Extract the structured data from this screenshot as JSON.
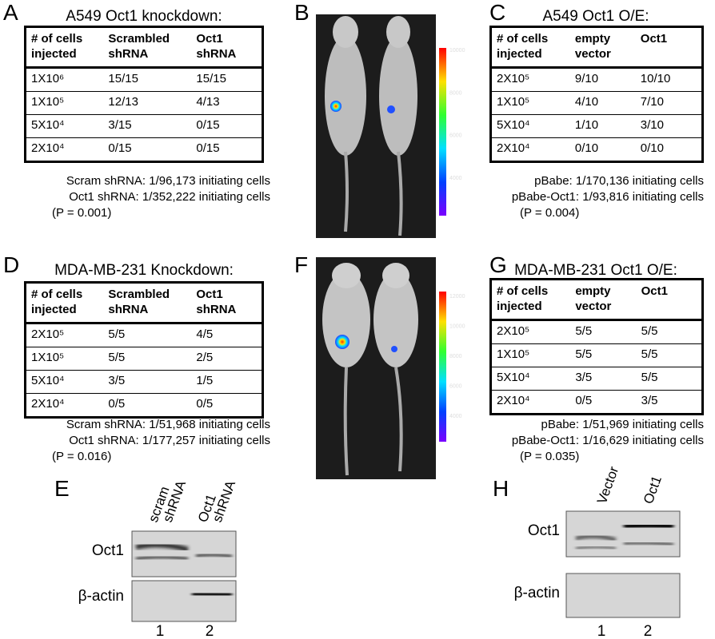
{
  "panels": [
    {
      "letter": "A",
      "title": "A549 Oct1 knockdown:",
      "table": {
        "header": [
          "# of cells injected",
          "Scrambled shRNA",
          "Oct1 shRNA"
        ],
        "rows": [
          [
            "1X10⁶",
            "15/15",
            "15/15"
          ],
          [
            "1X10⁵",
            "12/13",
            "4/13"
          ],
          [
            "5X10⁴",
            "3/15",
            "0/15"
          ],
          [
            "2X10⁴",
            "0/15",
            "0/15"
          ]
        ]
      },
      "stats": [
        "Scram shRNA: 1/96,173 initiating cells",
        "Oct1 shRNA: 1/352,222 initiating cells"
      ],
      "p": "(P = 0.001)"
    },
    {
      "letter": "C",
      "title": "A549 Oct1 O/E:",
      "table": {
        "header": [
          "# of cells injected",
          "empty vector",
          "Oct1"
        ],
        "rows": [
          [
            "2X10⁵",
            "9/10",
            "10/10"
          ],
          [
            "1X10⁵",
            "4/10",
            "7/10"
          ],
          [
            "5X10⁴",
            "1/10",
            "3/10"
          ],
          [
            "2X10⁴",
            "0/10",
            "0/10"
          ]
        ]
      },
      "stats": [
        "pBabe: 1/170,136 initiating cells",
        "pBabe-Oct1: 1/93,816 initiating cells"
      ],
      "p": "(P = 0.004)"
    },
    {
      "letter": "D",
      "title": "MDA-MB-231 Knockdown:",
      "table": {
        "header": [
          "# of cells injected",
          "Scrambled shRNA",
          "Oct1 shRNA"
        ],
        "rows": [
          [
            "2X10⁵",
            "5/5",
            "4/5"
          ],
          [
            "1X10⁵",
            "5/5",
            "2/5"
          ],
          [
            "5X10⁴",
            "3/5",
            "1/5"
          ],
          [
            "2X10⁴",
            "0/5",
            "0/5"
          ]
        ]
      },
      "stats": [
        "Scram shRNA: 1/51,968 initiating cells",
        "Oct1 shRNA: 1/177,257 initiating cells"
      ],
      "p": "(P = 0.016)"
    },
    {
      "letter": "G",
      "title": "MDA-MB-231 Oct1 O/E:",
      "table": {
        "header": [
          "# of cells injected",
          "empty vector",
          "Oct1"
        ],
        "rows": [
          [
            "2X10⁵",
            "5/5",
            "5/5"
          ],
          [
            "1X10⁵",
            "5/5",
            "5/5"
          ],
          [
            "5X10⁴",
            "3/5",
            "5/5"
          ],
          [
            "2X10⁴",
            "0/5",
            "3/5"
          ]
        ]
      },
      "stats": [
        "pBabe: 1/51,969 initiating cells",
        "pBabe-Oct1: 1/16,629 initiating cells"
      ],
      "p": "(P = 0.035)"
    }
  ],
  "images": [
    {
      "letter": "B",
      "colorbar_ticks": [
        10000,
        8000,
        6000,
        4000
      ]
    },
    {
      "letter": "F",
      "colorbar_ticks": [
        12000,
        10000,
        8000,
        6000,
        4000
      ]
    }
  ],
  "blots": [
    {
      "letter": "E",
      "lanes": [
        [
          "scram",
          "shRNA"
        ],
        [
          "Oct1",
          "shRNA"
        ]
      ],
      "rows": [
        "Oct1",
        "β-actin"
      ],
      "lane_numbers": [
        1,
        2
      ]
    },
    {
      "letter": "H",
      "lanes": [
        [
          "Vector"
        ],
        [
          "Oct1"
        ]
      ],
      "rows": [
        "Oct1",
        "β-actin"
      ],
      "lane_numbers": [
        1,
        2
      ]
    }
  ]
}
